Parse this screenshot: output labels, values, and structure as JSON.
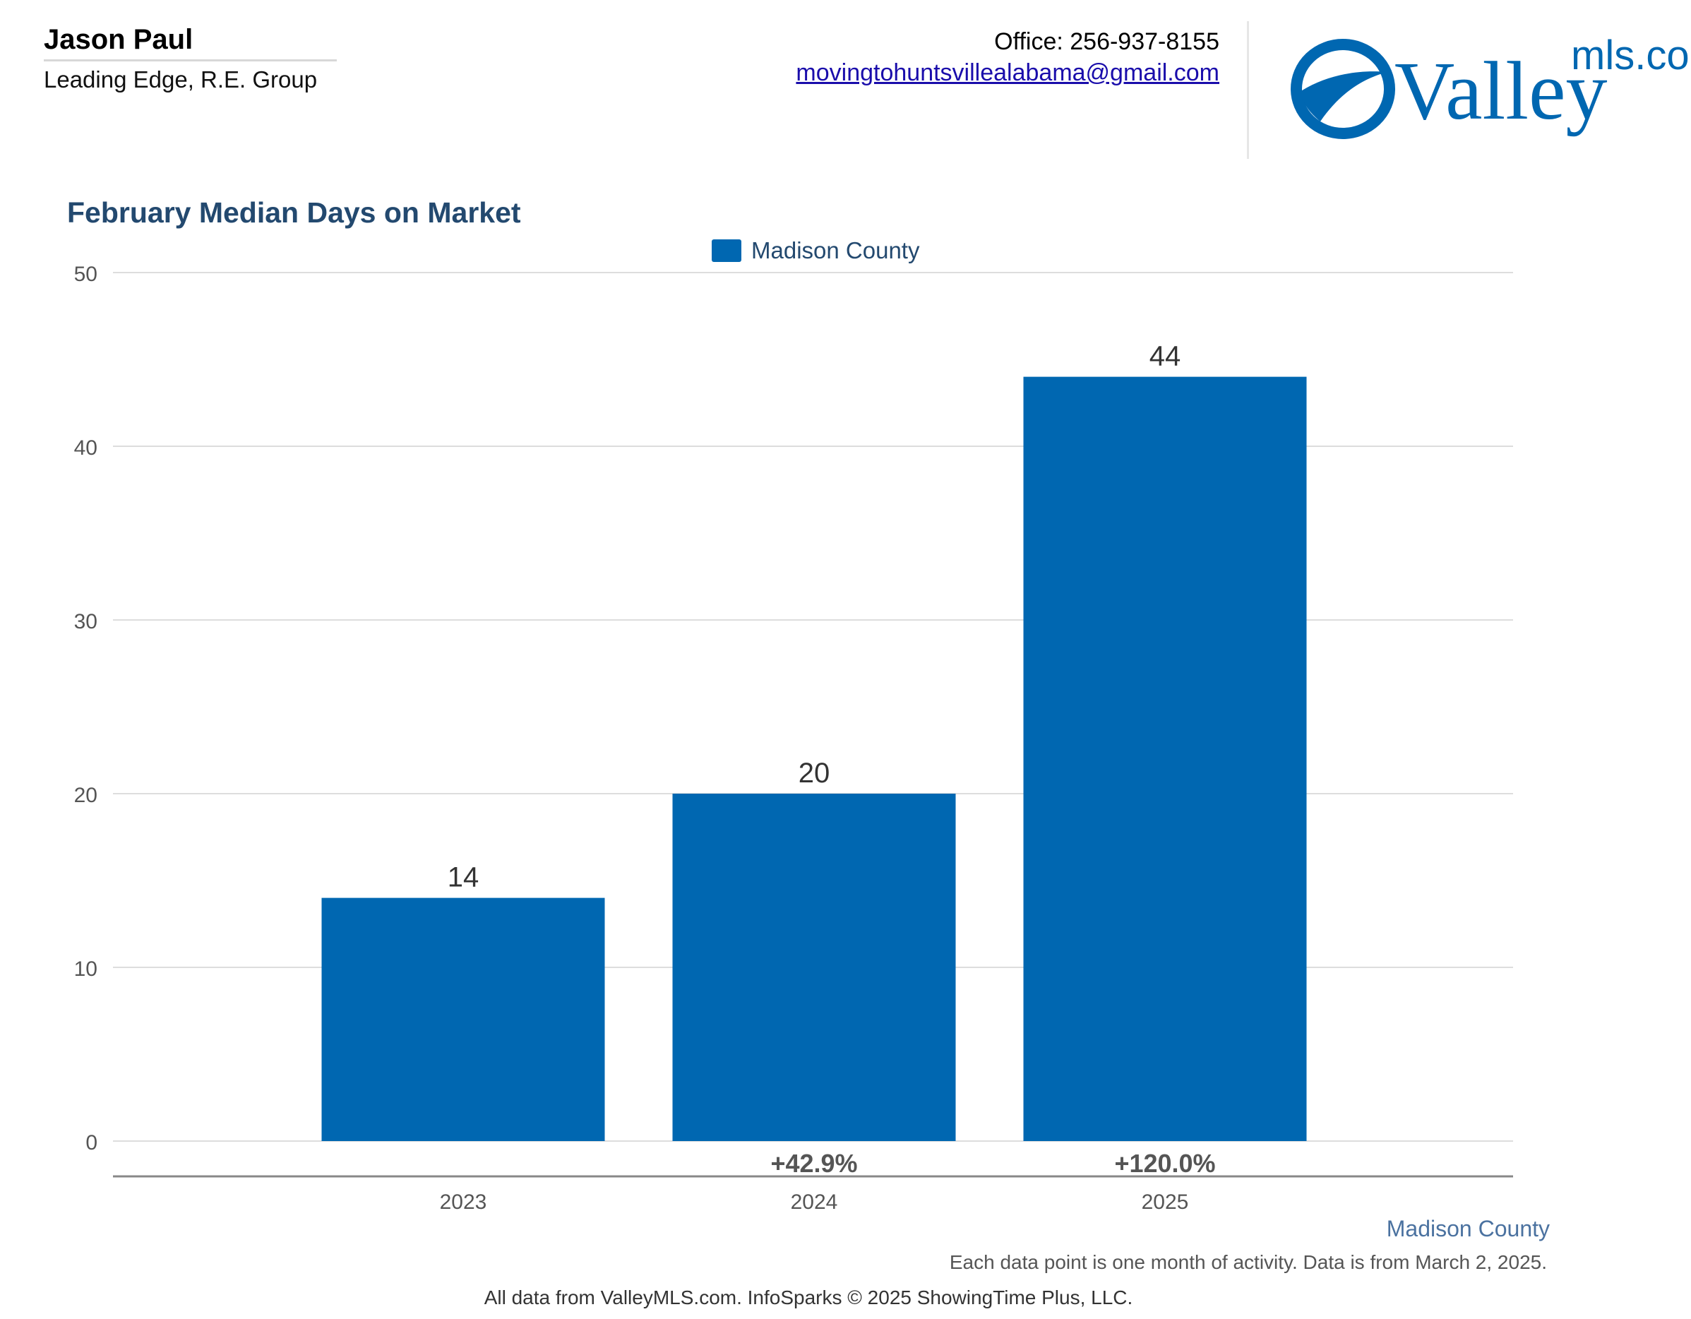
{
  "header": {
    "agent_name": "Jason Paul",
    "agent_company": "Leading Edge, R.E. Group",
    "office": "Office: 256-937-8155",
    "email": "movingtohuntsvillealabama@gmail.com"
  },
  "logo": {
    "primary": "Valley",
    "secondary": "mls.com",
    "color": "#0067b1"
  },
  "chart_data": {
    "type": "bar",
    "title": "February Median Days on Market",
    "legend": [
      "Madison County"
    ],
    "legend_position": "top-center",
    "categories": [
      "2023",
      "2024",
      "2025"
    ],
    "series": [
      {
        "name": "Madison County",
        "values": [
          14,
          20,
          44
        ],
        "color": "#0067b1"
      }
    ],
    "changes": [
      "",
      "+42.9%",
      "+120.0%"
    ],
    "yticks": [
      "0",
      "10",
      "20",
      "30",
      "40",
      "50"
    ],
    "ylim": [
      0,
      50
    ],
    "grid": true,
    "xlabel": "",
    "ylabel": ""
  },
  "footer": {
    "series_label": "Madison County",
    "note": "Each data point is one month of activity. Data is from March 2, 2025.",
    "credit": "All data from ValleyMLS.com. InfoSparks © 2025 ShowingTime Plus, LLC."
  }
}
